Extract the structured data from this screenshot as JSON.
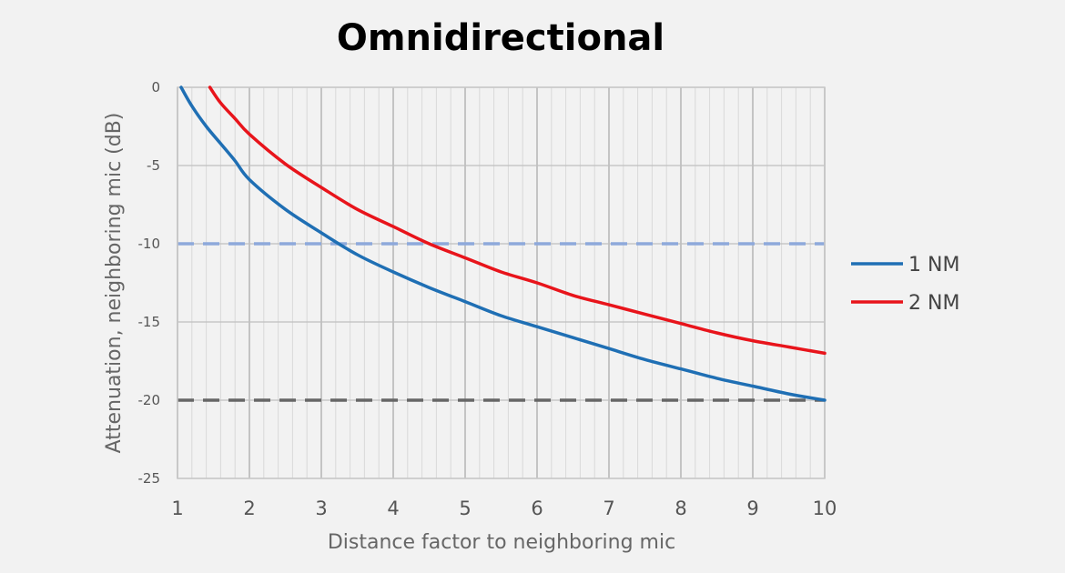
{
  "chart_data": {
    "type": "line",
    "title": "Omnidirectional",
    "xlabel": "Distance factor to neighboring mic",
    "ylabel": "Attenuation, neighboring mic (dB)",
    "xlim": [
      1,
      10
    ],
    "ylim": [
      -25,
      0
    ],
    "x_ticks": [
      "1",
      "2",
      "3",
      "4",
      "5",
      "6",
      "7",
      "8",
      "9",
      "10"
    ],
    "y_ticks": [
      "0",
      "-5",
      "-10",
      "-15",
      "-20",
      "-25"
    ],
    "grid": true,
    "legend_position": "right",
    "reference_lines": [
      {
        "y": -10,
        "color": "#8ea9db",
        "style": "dashed"
      },
      {
        "y": -20,
        "color": "#666666",
        "style": "dashed"
      }
    ],
    "series": [
      {
        "name": "1 NM",
        "color": "#1f6fb4",
        "x": [
          1.05,
          1.2,
          1.4,
          1.6,
          1.8,
          2,
          2.5,
          3,
          3.5,
          4,
          4.5,
          5,
          5.5,
          6,
          6.5,
          7,
          7.5,
          8,
          8.5,
          9,
          9.5,
          10
        ],
        "y": [
          0,
          -1.2,
          -2.5,
          -3.6,
          -4.7,
          -5.9,
          -7.8,
          -9.3,
          -10.7,
          -11.8,
          -12.8,
          -13.7,
          -14.6,
          -15.3,
          -16,
          -16.7,
          -17.4,
          -18,
          -18.6,
          -19.1,
          -19.6,
          -20
        ]
      },
      {
        "name": "2 NM",
        "color": "#e8141b",
        "x": [
          1.45,
          1.6,
          1.8,
          2,
          2.5,
          3,
          3.5,
          4,
          4.5,
          5,
          5.5,
          6,
          6.5,
          7,
          7.5,
          8,
          8.5,
          9,
          9.5,
          10
        ],
        "y": [
          0,
          -1,
          -2,
          -3,
          -4.9,
          -6.4,
          -7.8,
          -8.9,
          -10,
          -10.9,
          -11.8,
          -12.5,
          -13.3,
          -13.9,
          -14.5,
          -15.1,
          -15.7,
          -16.2,
          -16.6,
          -17
        ]
      }
    ]
  }
}
